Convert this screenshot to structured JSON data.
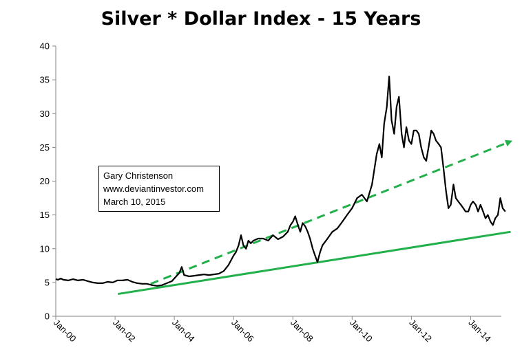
{
  "chart_data": {
    "type": "line",
    "title": "Silver * Dollar Index - 15 Years",
    "xlabel": "",
    "ylabel": "",
    "ylim": [
      0,
      40
    ],
    "yticks": [
      "0",
      "5",
      "10",
      "15",
      "20",
      "25",
      "30",
      "35",
      "40"
    ],
    "xtick_labels": [
      "Jan-00",
      "Jan-02",
      "Jan-04",
      "Jan-06",
      "Jan-08",
      "Jan-10",
      "Jan-12",
      "Jan-14"
    ],
    "xlim": [
      2000.0,
      2015.5
    ],
    "grid": false,
    "colors": {
      "series": "#000000",
      "support": "#22b04b",
      "trend": "#22b04b"
    },
    "annotation": [
      "Gary Christenson",
      "www.deviantinvestor.com",
      "March 10, 2015"
    ],
    "series": [
      {
        "x": [
          2000.0,
          2000.08,
          2000.17,
          2000.25,
          2000.42,
          2000.58,
          2000.75,
          2000.92,
          2001.08,
          2001.25,
          2001.42,
          2001.58,
          2001.75,
          2001.92,
          2002.08,
          2002.25,
          2002.42,
          2002.58,
          2002.75,
          2002.92,
          2003.08,
          2003.25,
          2003.42,
          2003.58,
          2003.75,
          2003.92,
          2004.08,
          2004.17,
          2004.25,
          2004.33,
          2004.5,
          2004.67,
          2004.83,
          2005.0,
          2005.17,
          2005.33,
          2005.5,
          2005.67,
          2005.83,
          2006.0,
          2006.08,
          2006.17,
          2006.25,
          2006.33,
          2006.42,
          2006.5,
          2006.58,
          2006.67,
          2006.83,
          2007.0,
          2007.17,
          2007.33,
          2007.5,
          2007.67,
          2007.83,
          2007.92,
          2008.0,
          2008.08,
          2008.17,
          2008.25,
          2008.33,
          2008.42,
          2008.5,
          2008.58,
          2008.67,
          2008.75,
          2008.83,
          2008.92,
          2009.0,
          2009.17,
          2009.33,
          2009.5,
          2009.67,
          2009.83,
          2010.0,
          2010.17,
          2010.33,
          2010.5,
          2010.67,
          2010.83,
          2010.92,
          2011.0,
          2011.08,
          2011.17,
          2011.25,
          2011.33,
          2011.42,
          2011.5,
          2011.58,
          2011.67,
          2011.75,
          2011.83,
          2011.92,
          2012.0,
          2012.08,
          2012.17,
          2012.25,
          2012.33,
          2012.42,
          2012.5,
          2012.58,
          2012.67,
          2012.75,
          2012.83,
          2012.92,
          2013.0,
          2013.08,
          2013.17,
          2013.25,
          2013.33,
          2013.42,
          2013.5,
          2013.58,
          2013.67,
          2013.75,
          2013.83,
          2013.92,
          2014.0,
          2014.08,
          2014.17,
          2014.25,
          2014.33,
          2014.42,
          2014.5,
          2014.58,
          2014.67,
          2014.75,
          2014.83,
          2014.92,
          2015.0,
          2015.08,
          2015.17
        ],
        "y": [
          5.5,
          5.4,
          5.6,
          5.4,
          5.3,
          5.5,
          5.3,
          5.4,
          5.2,
          5.0,
          4.9,
          4.9,
          5.1,
          5.0,
          5.3,
          5.3,
          5.4,
          5.1,
          4.9,
          4.8,
          4.8,
          4.6,
          4.5,
          4.6,
          4.9,
          5.2,
          6.0,
          6.4,
          7.3,
          6.1,
          5.9,
          6.0,
          6.1,
          6.2,
          6.1,
          6.2,
          6.3,
          6.7,
          7.6,
          9.0,
          9.5,
          10.5,
          12.0,
          10.5,
          10.0,
          11.2,
          10.8,
          11.2,
          11.5,
          11.5,
          11.2,
          12.0,
          11.4,
          11.8,
          12.5,
          13.5,
          14.0,
          14.8,
          13.5,
          12.5,
          13.8,
          13.3,
          12.5,
          11.5,
          10.0,
          9.0,
          8.0,
          9.5,
          10.5,
          11.5,
          12.5,
          13.0,
          14.0,
          15.0,
          16.0,
          17.5,
          18.0,
          17.0,
          19.5,
          24.0,
          25.5,
          23.5,
          28.5,
          31.0,
          35.5,
          29.0,
          27.0,
          31.0,
          32.5,
          27.0,
          25.0,
          28.0,
          26.0,
          25.5,
          27.5,
          27.5,
          27.0,
          25.0,
          23.5,
          23.0,
          25.0,
          27.5,
          27.0,
          26.0,
          25.5,
          25.0,
          22.0,
          18.5,
          16.0,
          16.5,
          19.5,
          17.5,
          17.0,
          16.5,
          16.0,
          15.5,
          15.5,
          16.5,
          17.0,
          16.5,
          15.5,
          16.5,
          15.5,
          14.5,
          15.0,
          14.0,
          13.5,
          14.5,
          15.0,
          17.5,
          16.0,
          15.5
        ]
      }
    ],
    "support_line": {
      "x": [
        2002.1,
        2015.35
      ],
      "y": [
        3.3,
        12.5
      ]
    },
    "trend_line": {
      "x": [
        2003.2,
        2015.3
      ],
      "y": [
        4.8,
        25.8
      ]
    }
  }
}
